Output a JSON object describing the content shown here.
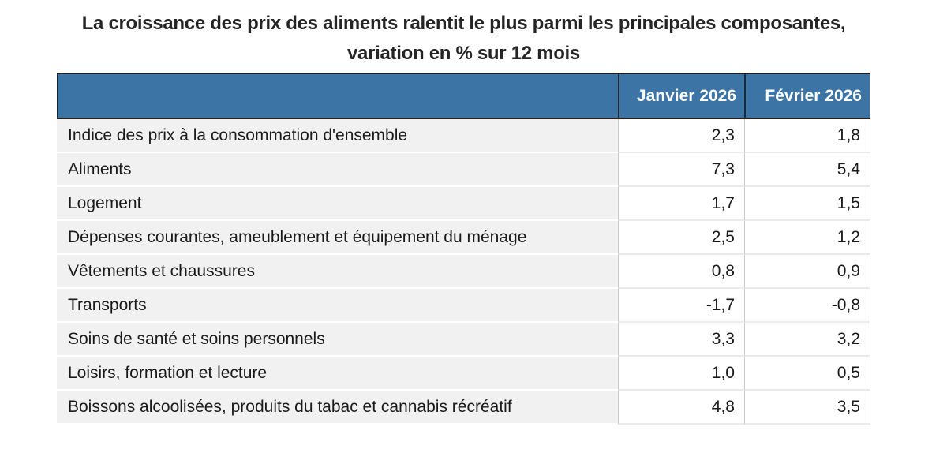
{
  "title": "La croissance des prix des aliments ralentit le plus parmi les principales composantes, variation en % sur 12 mois",
  "table": {
    "header": {
      "col0": "",
      "col1": "Janvier 2026",
      "col2": "Février 2026"
    },
    "rows": [
      {
        "label": "Indice des prix à la consommation d'ensemble",
        "jan": "2,3",
        "fev": "1,8"
      },
      {
        "label": "Aliments",
        "jan": "7,3",
        "fev": "5,4"
      },
      {
        "label": "Logement",
        "jan": "1,7",
        "fev": "1,5"
      },
      {
        "label": "Dépenses courantes, ameublement et équipement du ménage",
        "jan": "2,5",
        "fev": "1,2"
      },
      {
        "label": "Vêtements et chaussures",
        "jan": "0,8",
        "fev": "0,9"
      },
      {
        "label": "Transports",
        "jan": "-1,7",
        "fev": "-0,8"
      },
      {
        "label": "Soins de santé et soins personnels",
        "jan": "3,3",
        "fev": "3,2"
      },
      {
        "label": "Loisirs, formation et lecture",
        "jan": "1,0",
        "fev": "0,5"
      },
      {
        "label": "Boissons alcoolisées, produits du tabac et cannabis récréatif",
        "jan": "4,8",
        "fev": "3,5"
      }
    ]
  },
  "colors": {
    "header_bg": "#3d74a6",
    "header_text": "#ffffff",
    "header_border": "#212121",
    "label_cell_bg": "#f1f1f1",
    "body_text": "#1a1a1a",
    "column_divider": "#c9c9c9",
    "row_divider": "#ebebeb"
  },
  "chart_data": {
    "type": "table",
    "title": "La croissance des prix des aliments ralentit le plus parmi les principales composantes, variation en % sur 12 mois",
    "unit": "variation en % sur 12 mois",
    "columns": [
      "Janvier 2026",
      "Février 2026"
    ],
    "categories": [
      "Indice des prix à la consommation d'ensemble",
      "Aliments",
      "Logement",
      "Dépenses courantes, ameublement et équipement du ménage",
      "Vêtements et chaussures",
      "Transports",
      "Soins de santé et soins personnels",
      "Loisirs, formation et lecture",
      "Boissons alcoolisées, produits du tabac et cannabis récréatif"
    ],
    "series": [
      {
        "name": "Janvier 2026",
        "values": [
          2.3,
          7.3,
          1.7,
          2.5,
          0.8,
          -1.7,
          3.3,
          1.0,
          4.8
        ]
      },
      {
        "name": "Février 2026",
        "values": [
          1.8,
          5.4,
          1.5,
          1.2,
          0.9,
          -0.8,
          3.2,
          0.5,
          3.5
        ]
      }
    ]
  }
}
